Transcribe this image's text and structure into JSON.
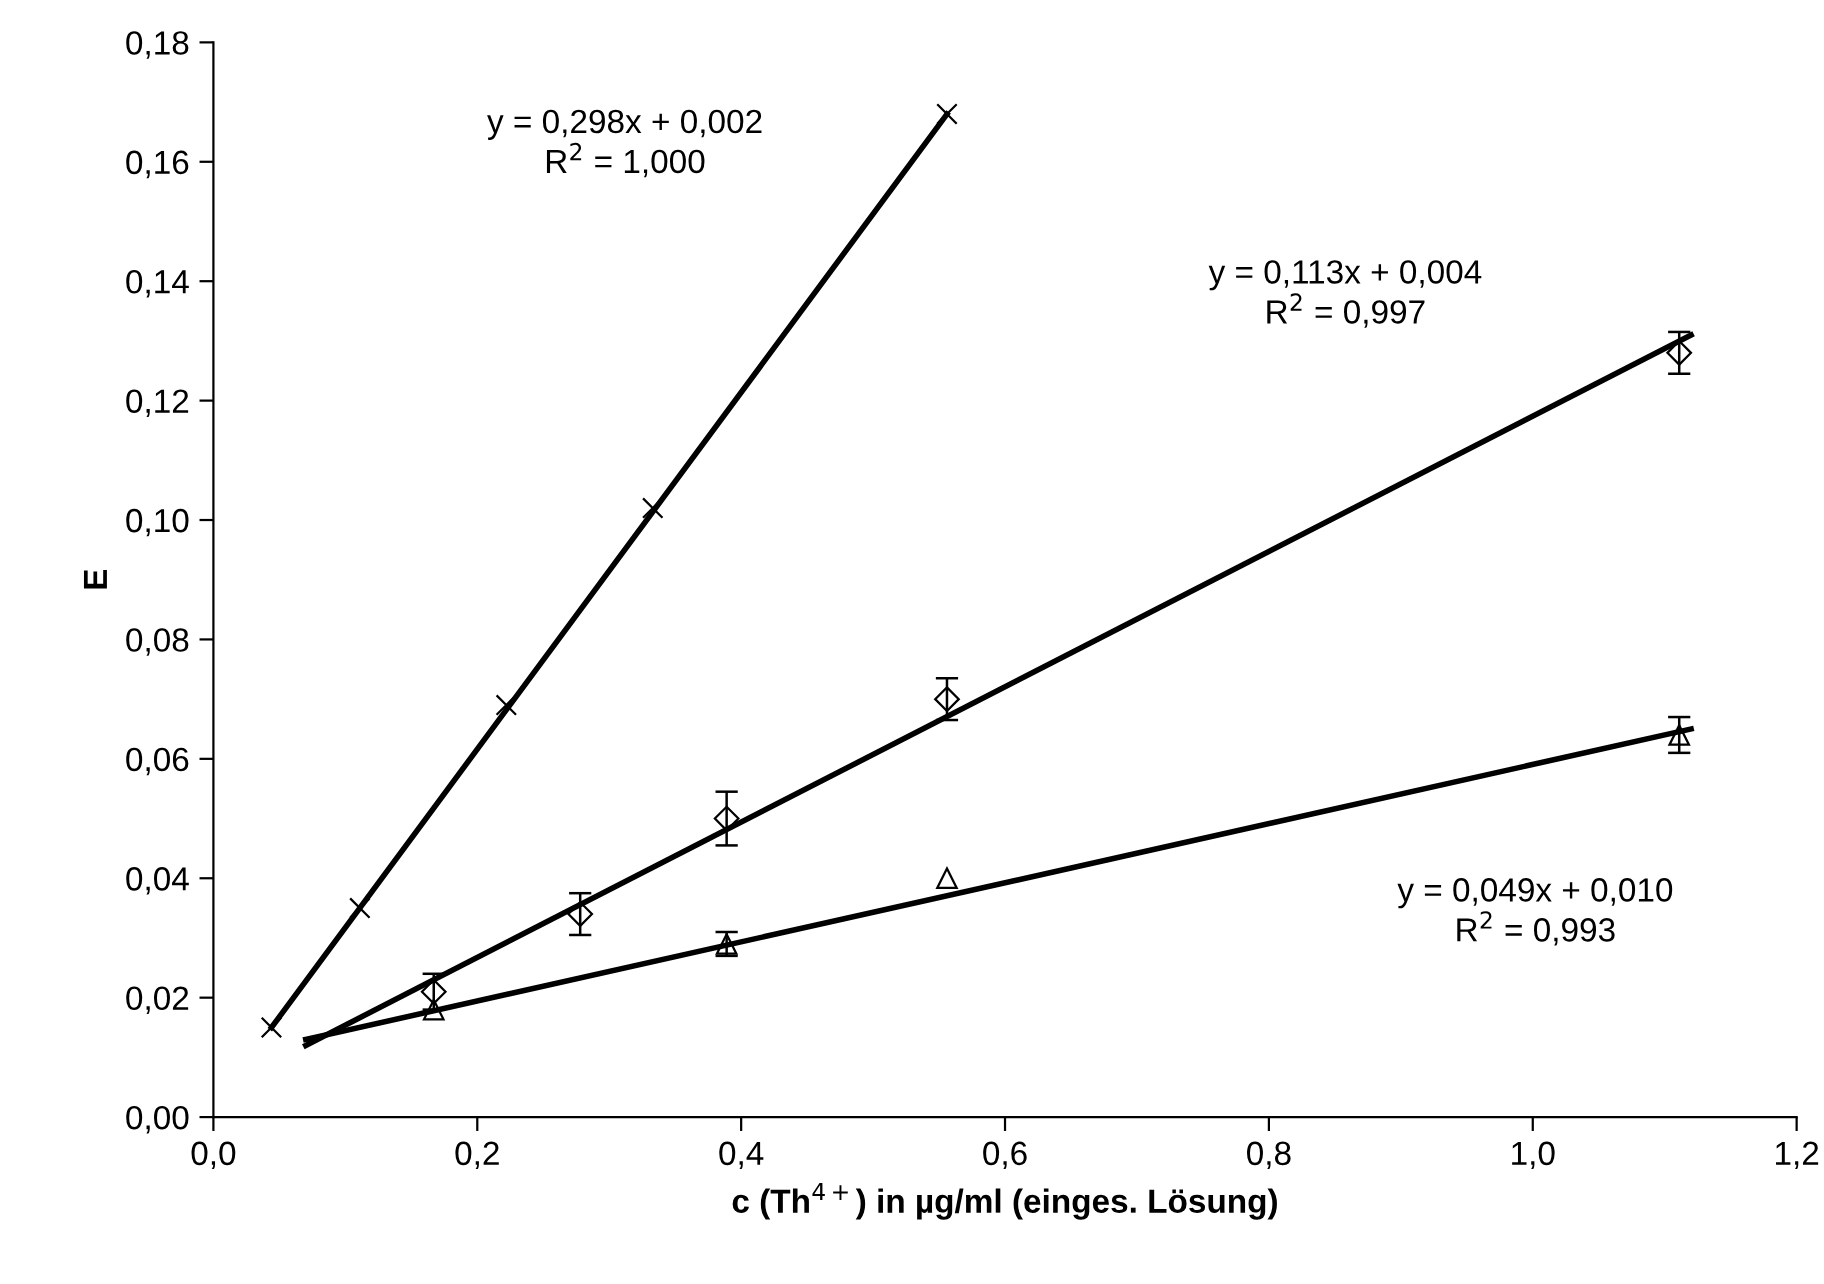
{
  "chart_data": {
    "type": "scatter",
    "xlabel": "c (Th$^{4+}$) in µg/ml (einges. Lösung)",
    "ylabel": "E",
    "xlim": [
      0,
      1.2
    ],
    "xticks": [
      {
        "value": 0,
        "label": "0,0"
      },
      {
        "value": 0.2,
        "label": "0,2"
      },
      {
        "value": 0.4,
        "label": "0,4"
      },
      {
        "value": 0.6,
        "label": "0,6"
      },
      {
        "value": 0.8,
        "label": "0,8"
      },
      {
        "value": 1.0,
        "label": "1,0"
      },
      {
        "value": 1.2,
        "label": "1,2"
      }
    ],
    "ylim": [
      0,
      0.18
    ],
    "yticks": [
      {
        "value": 0,
        "label": "0,00"
      },
      {
        "value": 0.02,
        "label": "0,02"
      },
      {
        "value": 0.04,
        "label": "0,04"
      },
      {
        "value": 0.06,
        "label": "0,06"
      },
      {
        "value": 0.08,
        "label": "0,08"
      },
      {
        "value": 0.1,
        "label": "0,10"
      },
      {
        "value": 0.12,
        "label": "0,12"
      },
      {
        "value": 0.14,
        "label": "0,14"
      },
      {
        "value": 0.16,
        "label": "0,16"
      },
      {
        "value": 0.18,
        "label": "0,18"
      }
    ],
    "grid": false,
    "legend": false,
    "series": [
      {
        "marker": "cross",
        "color": "#000000",
        "x": [
          0.044,
          0.111,
          0.222,
          0.333,
          0.556
        ],
        "values": [
          0.015,
          0.035,
          0.069,
          0.102,
          0.168
        ]
      },
      {
        "marker": "diamond",
        "color": "#000000",
        "x": [
          0.167,
          0.278,
          0.389,
          0.556,
          1.111
        ],
        "values": [
          0.021,
          0.034,
          0.05,
          0.07,
          0.128
        ],
        "errors": [
          0.003,
          0.0035,
          0.0045,
          0.0035,
          0.0035
        ]
      },
      {
        "marker": "triangle",
        "color": "#000000",
        "x": [
          0.167,
          0.389,
          0.556,
          1.111
        ],
        "values": [
          0.018,
          0.029,
          0.04,
          0.064
        ],
        "errors": [
          null,
          0.002,
          null,
          0.003
        ]
      },
      {
        "type": "line",
        "marker": "none",
        "color": "#000000",
        "x": [
          0.044,
          0.556
        ],
        "values": [
          0.015,
          0.168
        ]
      },
      {
        "type": "line",
        "marker": "none",
        "color": "#000000",
        "x": [
          0.07,
          1.12
        ],
        "values": [
          0.012,
          0.131
        ]
      },
      {
        "type": "line",
        "marker": "none",
        "color": "#000000",
        "x": [
          0.07,
          1.12
        ],
        "values": [
          0.013,
          0.065
        ]
      }
    ],
    "annotations": [
      "y = 0,298x + 0,002\nR$^{2}$ = 1,000",
      "y = 0,113x + 0,004\nR$^{2}$ = 0,997",
      "y = 0,049x + 0,010\nR$^{2}$ = 0,993"
    ]
  }
}
